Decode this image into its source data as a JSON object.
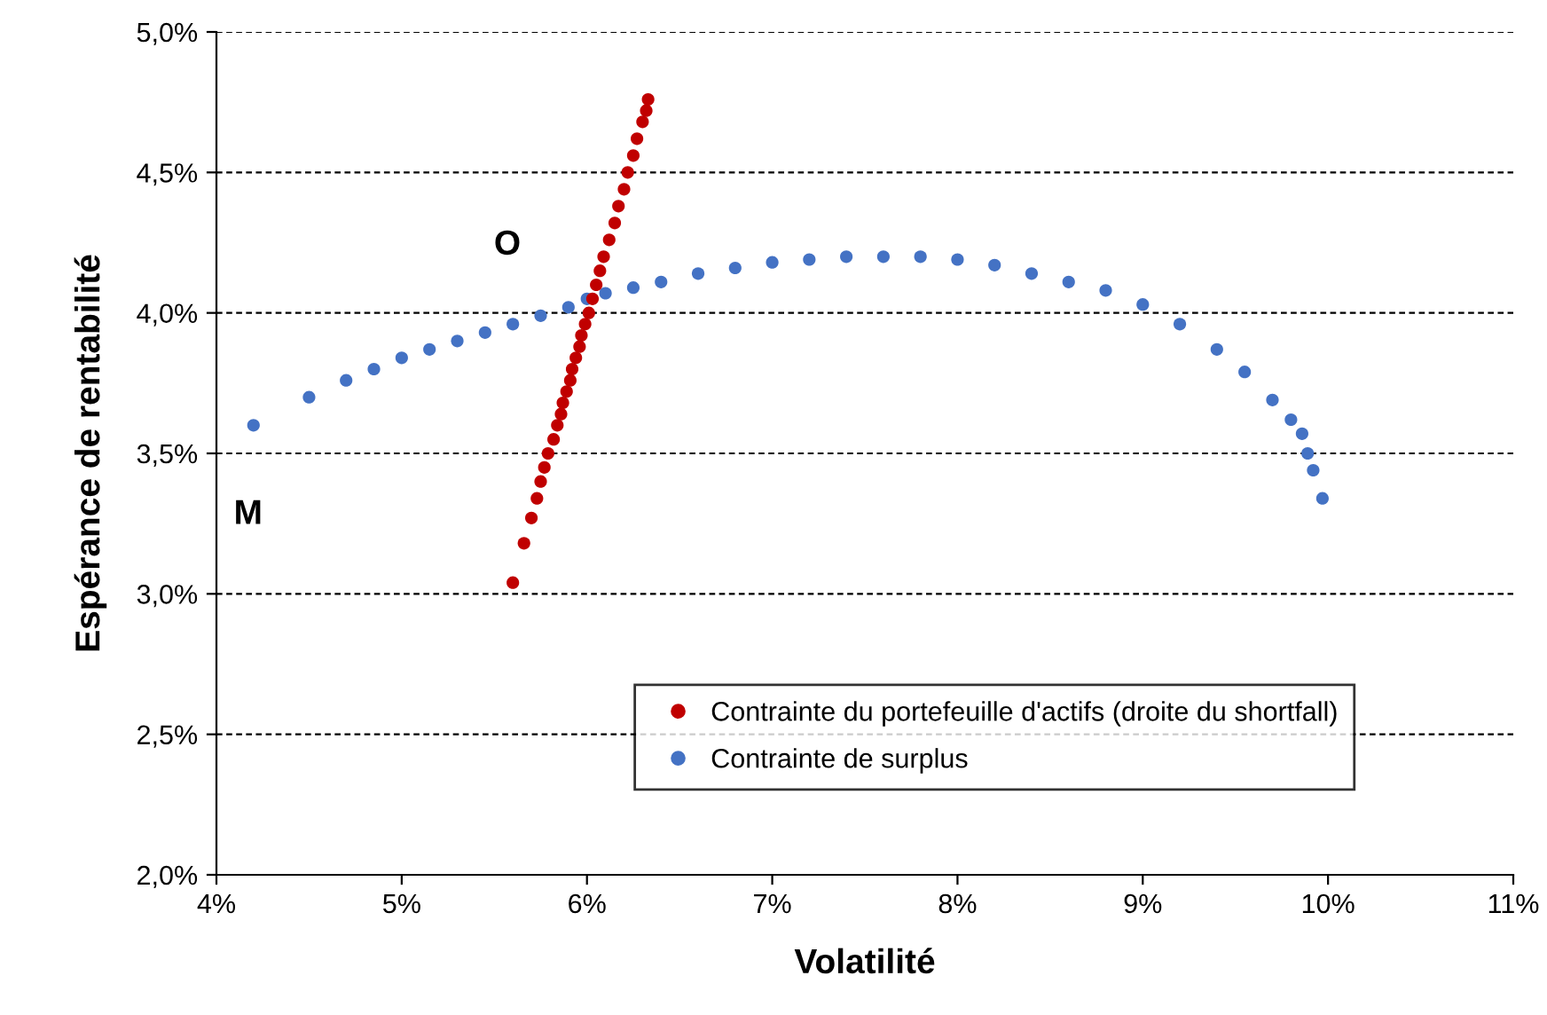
{
  "chart_data": {
    "type": "scatter",
    "xlabel": "Volatilité",
    "ylabel": "Espérance de rentabilité",
    "xlim": [
      4,
      11
    ],
    "ylim": [
      2,
      5
    ],
    "xticks": [
      {
        "value": 4,
        "label": "4%"
      },
      {
        "value": 5,
        "label": "5%"
      },
      {
        "value": 6,
        "label": "6%"
      },
      {
        "value": 7,
        "label": "7%"
      },
      {
        "value": 8,
        "label": "8%"
      },
      {
        "value": 9,
        "label": "9%"
      },
      {
        "value": 10,
        "label": "10%"
      },
      {
        "value": 11,
        "label": "11%"
      }
    ],
    "yticks": [
      {
        "value": 2,
        "label": "2,0%"
      },
      {
        "value": 2.5,
        "label": "2,5%"
      },
      {
        "value": 3,
        "label": "3,0%"
      },
      {
        "value": 3.5,
        "label": "3,5%"
      },
      {
        "value": 4,
        "label": "4,0%"
      },
      {
        "value": 4.5,
        "label": "4,5%"
      },
      {
        "value": 5,
        "label": "5,0%"
      }
    ],
    "grid": "y",
    "legend": "bottom",
    "marker": "circle",
    "series": [
      {
        "name": "Contrainte du portefeuille d'actifs (droite du shortfall)",
        "color": "#c00000",
        "x": [
          5.6,
          5.66,
          5.7,
          5.73,
          5.75,
          5.77,
          5.79,
          5.82,
          5.84,
          5.86,
          5.87,
          5.89,
          5.91,
          5.92,
          5.94,
          5.96,
          5.97,
          5.99,
          6.01,
          6.03,
          6.05,
          6.07,
          6.09,
          6.12,
          6.15,
          6.17,
          6.2,
          6.22,
          6.25,
          6.27,
          6.3,
          6.32,
          6.33
        ],
        "values": [
          3.04,
          3.18,
          3.27,
          3.34,
          3.4,
          3.45,
          3.5,
          3.55,
          3.6,
          3.64,
          3.68,
          3.72,
          3.76,
          3.8,
          3.84,
          3.88,
          3.92,
          3.96,
          4.0,
          4.05,
          4.1,
          4.15,
          4.2,
          4.26,
          4.32,
          4.38,
          4.44,
          4.5,
          4.56,
          4.62,
          4.68,
          4.72,
          4.76
        ]
      },
      {
        "name": "Contrainte de surplus",
        "color": "#4472c4",
        "x": [
          4.2,
          4.5,
          4.7,
          4.85,
          5.0,
          5.15,
          5.3,
          5.45,
          5.6,
          5.75,
          5.9,
          6.0,
          6.1,
          6.25,
          6.4,
          6.6,
          6.8,
          7.0,
          7.2,
          7.4,
          7.6,
          7.8,
          8.0,
          8.2,
          8.4,
          8.6,
          8.8,
          9.0,
          9.2,
          9.4,
          9.55,
          9.7,
          9.8,
          9.86,
          9.89,
          9.92,
          9.97
        ],
        "values": [
          3.6,
          3.7,
          3.76,
          3.8,
          3.84,
          3.87,
          3.9,
          3.93,
          3.96,
          3.99,
          4.02,
          4.05,
          4.07,
          4.09,
          4.11,
          4.14,
          4.16,
          4.18,
          4.19,
          4.2,
          4.2,
          4.2,
          4.19,
          4.17,
          4.14,
          4.11,
          4.08,
          4.03,
          3.96,
          3.87,
          3.79,
          3.69,
          3.62,
          3.57,
          3.5,
          3.44,
          3.34
        ]
      }
    ],
    "annotations": [
      {
        "text": "M",
        "x": 4.2,
        "y": 3.6
      },
      {
        "text": "O",
        "x": 6.03,
        "y": 4.05
      }
    ]
  }
}
